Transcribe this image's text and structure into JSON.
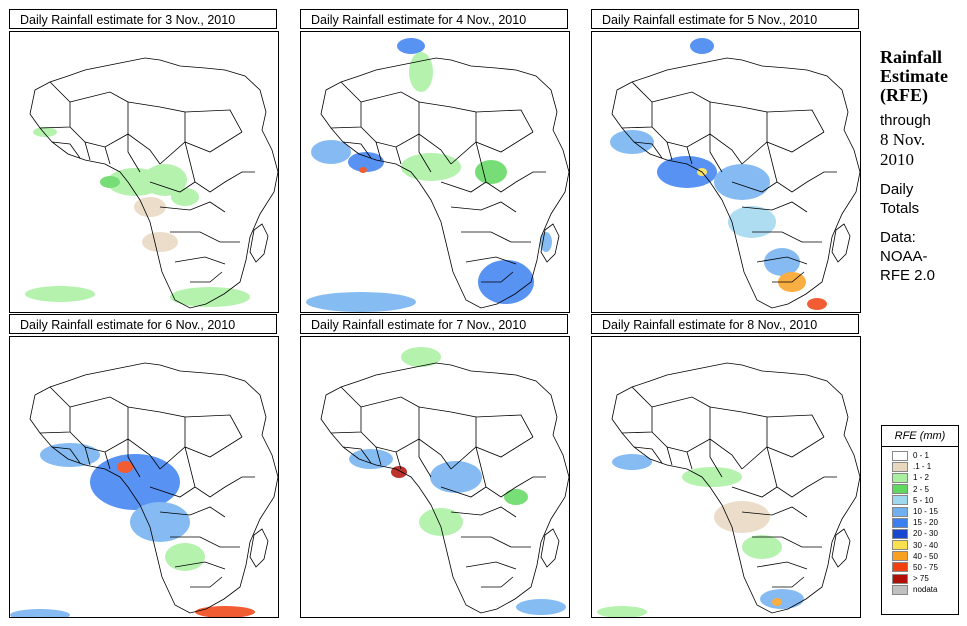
{
  "panels": [
    {
      "title": "Daily Rainfall estimate for  3 Nov., 2010"
    },
    {
      "title": "Daily Rainfall estimate for  4 Nov., 2010"
    },
    {
      "title": "Daily Rainfall estimate for  5 Nov., 2010"
    },
    {
      "title": "Daily Rainfall estimate for  6 Nov., 2010"
    },
    {
      "title": "Daily Rainfall estimate for  7 Nov., 2010"
    },
    {
      "title": "Daily Rainfall estimate for  8 Nov., 2010"
    }
  ],
  "side": {
    "title1": "Rainfall",
    "title2": "Estimate",
    "title3": "(RFE)",
    "through": "through",
    "date1": "8 Nov.",
    "date2": "2010",
    "daily": "Daily",
    "totals": "Totals",
    "data_label": "Data:",
    "source1": "NOAA-",
    "source2": "RFE 2.0"
  },
  "legend": {
    "title": "RFE (mm)",
    "items": [
      {
        "label": "0 - 1",
        "color": "#ffffff"
      },
      {
        "label": ".1 - 1",
        "color": "#e8d8c0"
      },
      {
        "label": "1 - 2",
        "color": "#a8f0a0"
      },
      {
        "label": "2 - 5",
        "color": "#60d860"
      },
      {
        "label": "5 - 10",
        "color": "#a0d8f0"
      },
      {
        "label": "10 - 15",
        "color": "#70b0f0"
      },
      {
        "label": "15 - 20",
        "color": "#3c80f0"
      },
      {
        "label": "20 - 30",
        "color": "#1848d0"
      },
      {
        "label": "30 - 40",
        "color": "#f8e050"
      },
      {
        "label": "40 - 50",
        "color": "#f8a020"
      },
      {
        "label": "50 - 75",
        "color": "#f04010"
      },
      {
        "label": "> 75",
        "color": "#b01008"
      },
      {
        "label": "nodata",
        "color": "#c0c0c0"
      }
    ]
  }
}
